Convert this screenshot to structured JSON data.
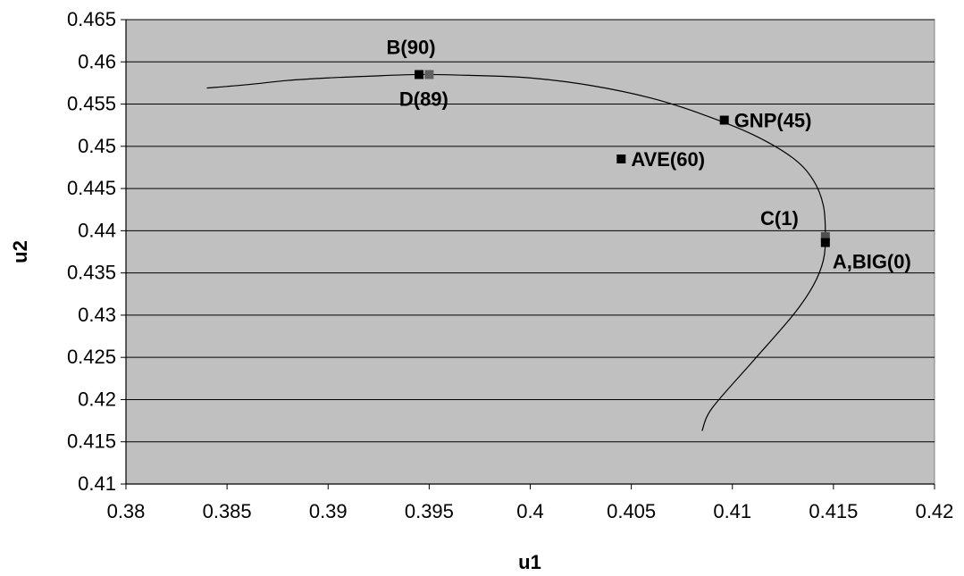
{
  "chart_data": {
    "type": "scatter",
    "title": "",
    "xlabel": "u1",
    "ylabel": "u2",
    "xlim": [
      0.38,
      0.42
    ],
    "ylim": [
      0.41,
      0.465
    ],
    "x_ticks": [
      "0.38",
      "0.385",
      "0.39",
      "0.395",
      "0.4",
      "0.405",
      "0.41",
      "0.415",
      "0.42"
    ],
    "y_ticks": [
      "0.41",
      "0.415",
      "0.42",
      "0.425",
      "0.43",
      "0.435",
      "0.44",
      "0.445",
      "0.45",
      "0.455",
      "0.46",
      "0.465"
    ],
    "grid": "horizontal",
    "legend": "none",
    "plot_background": "#C0C0C0",
    "curve": {
      "x": [
        0.384,
        0.386,
        0.388,
        0.39,
        0.392,
        0.3945,
        0.397,
        0.4,
        0.403,
        0.406,
        0.4085,
        0.411,
        0.413,
        0.414,
        0.4145,
        0.4146,
        0.4145,
        0.414,
        0.413,
        0.411,
        0.409,
        0.4085
      ],
      "y": [
        0.4569,
        0.4573,
        0.4578,
        0.4581,
        0.4583,
        0.4585,
        0.4584,
        0.4581,
        0.4572,
        0.4557,
        0.4538,
        0.4514,
        0.4486,
        0.446,
        0.443,
        0.4395,
        0.4365,
        0.4335,
        0.43,
        0.4245,
        0.419,
        0.4163
      ]
    },
    "points": [
      {
        "x": 0.3945,
        "y": 0.4585,
        "color": "#000000"
      },
      {
        "x": 0.395,
        "y": 0.4585,
        "color": "#606060"
      },
      {
        "x": 0.4096,
        "y": 0.4531,
        "color": "#000000"
      },
      {
        "x": 0.4045,
        "y": 0.4485,
        "color": "#000000"
      },
      {
        "x": 0.4146,
        "y": 0.4393,
        "color": "#505050"
      },
      {
        "x": 0.4146,
        "y": 0.4386,
        "color": "#000000"
      }
    ],
    "labels": [
      {
        "text": "B(90)",
        "x": 0.3945,
        "y": 0.4585,
        "anchor": "above-left"
      },
      {
        "text": "D(89)",
        "x": 0.395,
        "y": 0.4585,
        "anchor": "below"
      },
      {
        "text": "GNP(45)",
        "x": 0.4096,
        "y": 0.4531,
        "anchor": "right"
      },
      {
        "text": "AVE(60)",
        "x": 0.4045,
        "y": 0.4485,
        "anchor": "right"
      },
      {
        "text": "C(1)",
        "x": 0.4146,
        "y": 0.4393,
        "anchor": "above-left"
      },
      {
        "text": "A,BIG(0)",
        "x": 0.4146,
        "y": 0.4386,
        "anchor": "below-right"
      }
    ]
  }
}
